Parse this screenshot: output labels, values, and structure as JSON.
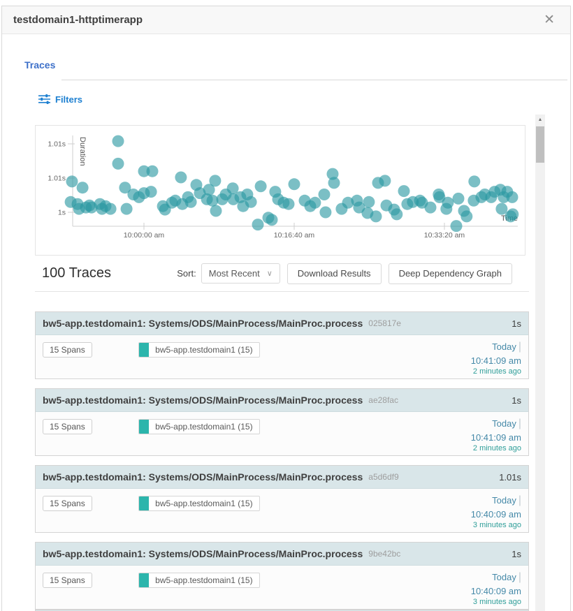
{
  "modal": {
    "title": "testdomain1-httptimerapp"
  },
  "icons": {
    "close": "✕",
    "chevron_down": "∨",
    "scroll_up": "▲",
    "filters": "sliders-horizontal-icon"
  },
  "tabs": {
    "traces_label": "Traces"
  },
  "filters": {
    "label": "Filters"
  },
  "chart_data": {
    "type": "scatter",
    "title": "",
    "xlabel": "Time",
    "ylabel": "Duration",
    "legend": "none",
    "grid": false,
    "point_color": "#2a98a2",
    "point_opacity": 0.62,
    "x_ticks": [
      {
        "t": 0,
        "label": "10:00:00 am"
      },
      {
        "t": 1000,
        "label": "10:16:40 am"
      },
      {
        "t": 2000,
        "label": "10:33:20 am"
      }
    ],
    "y_ticks": [
      {
        "d": 1.0,
        "label": "1s"
      },
      {
        "d": 1.005,
        "label": "1.01s"
      },
      {
        "d": 1.01,
        "label": "1.01s"
      }
    ],
    "x_range_s": [
      -500,
      2470
    ],
    "y_range_s": [
      0.997,
      1.012
    ],
    "point_format": "[seconds_from_10:00:00_am, duration_seconds]",
    "points": [
      [
        -488,
        1.0015
      ],
      [
        -479,
        1.0045
      ],
      [
        -442,
        1.0012
      ],
      [
        -432,
        1.0005
      ],
      [
        -409,
        1.0036
      ],
      [
        -386,
        1.0007
      ],
      [
        -363,
        1.001
      ],
      [
        -349,
        1.0007
      ],
      [
        -293,
        1.0012
      ],
      [
        -279,
        1.0005
      ],
      [
        -256,
        1.0009
      ],
      [
        -223,
        1.0005
      ],
      [
        -172,
        1.0104
      ],
      [
        -172,
        1.0071
      ],
      [
        -126,
        1.0036
      ],
      [
        -116,
        1.0005
      ],
      [
        -70,
        1.0026
      ],
      [
        -33,
        1.0022
      ],
      [
        0,
        1.006
      ],
      [
        0,
        1.0028
      ],
      [
        47,
        1.003
      ],
      [
        56,
        1.006
      ],
      [
        126,
        1.0009
      ],
      [
        140,
        1.0004
      ],
      [
        186,
        1.0014
      ],
      [
        209,
        1.0017
      ],
      [
        246,
        1.0051
      ],
      [
        256,
        1.0012
      ],
      [
        293,
        1.0022
      ],
      [
        312,
        1.0015
      ],
      [
        349,
        1.004
      ],
      [
        372,
        1.0028
      ],
      [
        419,
        1.0019
      ],
      [
        433,
        1.0033
      ],
      [
        456,
        1.0017
      ],
      [
        474,
        1.0046
      ],
      [
        479,
        1.0002
      ],
      [
        521,
        1.0019
      ],
      [
        544,
        1.0026
      ],
      [
        591,
        1.0035
      ],
      [
        595,
        1.0019
      ],
      [
        642,
        1.0022
      ],
      [
        660,
        1.0009
      ],
      [
        688,
        1.0026
      ],
      [
        712,
        1.0015
      ],
      [
        758,
        0.9982
      ],
      [
        777,
        1.0038
      ],
      [
        828,
        0.9992
      ],
      [
        851,
        0.9989
      ],
      [
        874,
        1.003
      ],
      [
        893,
        1.0019
      ],
      [
        930,
        1.0014
      ],
      [
        963,
        1.0012
      ],
      [
        1000,
        1.0041
      ],
      [
        1070,
        1.0017
      ],
      [
        1107,
        1.0009
      ],
      [
        1139,
        1.0014
      ],
      [
        1200,
        1.0026
      ],
      [
        1209,
        1.0
      ],
      [
        1256,
        1.0056
      ],
      [
        1265,
        1.0043
      ],
      [
        1316,
        1.0005
      ],
      [
        1358,
        1.0014
      ],
      [
        1418,
        1.0017
      ],
      [
        1432,
        1.0007
      ],
      [
        1488,
        0.9999
      ],
      [
        1497,
        1.0015
      ],
      [
        1544,
        0.9994
      ],
      [
        1558,
        1.0043
      ],
      [
        1604,
        1.0046
      ],
      [
        1614,
        1.001
      ],
      [
        1665,
        1.0004
      ],
      [
        1683,
        0.9997
      ],
      [
        1730,
        1.0031
      ],
      [
        1753,
        1.0012
      ],
      [
        1790,
        1.0015
      ],
      [
        1837,
        1.0017
      ],
      [
        1851,
        1.0014
      ],
      [
        1907,
        1.0007
      ],
      [
        1962,
        1.0026
      ],
      [
        1967,
        1.0022
      ],
      [
        2013,
        1.0005
      ],
      [
        2023,
        1.0014
      ],
      [
        2079,
        0.998
      ],
      [
        2093,
        1.002
      ],
      [
        2130,
        1.0002
      ],
      [
        2148,
        0.9994
      ],
      [
        2195,
        1.0017
      ],
      [
        2199,
        1.0045
      ],
      [
        2246,
        1.0022
      ],
      [
        2269,
        1.0026
      ],
      [
        2311,
        1.0022
      ],
      [
        2334,
        1.003
      ],
      [
        2372,
        1.0033
      ],
      [
        2381,
        1.0005
      ],
      [
        2395,
        1.0022
      ],
      [
        2418,
        1.003
      ],
      [
        2441,
        0.9994
      ],
      [
        2451,
        1.0022
      ],
      [
        2455,
        0.9997
      ]
    ]
  },
  "results_bar": {
    "count_label": "100 Traces",
    "sort_label": "Sort:",
    "sort_value": "Most Recent",
    "download_button": "Download Results",
    "ddg_button": "Deep Dependency Graph"
  },
  "traces": [
    {
      "title": "bw5-app.testdomain1: Systems/ODS/MainProcess/MainProc.process",
      "trace_id": "025817e",
      "duration": "1s",
      "spans": "15 Spans",
      "service_tag": "bw5-app.testdomain1 (15)",
      "date": "Today",
      "sep": "|",
      "time": "10:41:09 am",
      "relative": "2 minutes ago"
    },
    {
      "title": "bw5-app.testdomain1: Systems/ODS/MainProcess/MainProc.process",
      "trace_id": "ae28fac",
      "duration": "1s",
      "spans": "15 Spans",
      "service_tag": "bw5-app.testdomain1 (15)",
      "date": "Today",
      "sep": "|",
      "time": "10:41:09 am",
      "relative": "2 minutes ago"
    },
    {
      "title": "bw5-app.testdomain1: Systems/ODS/MainProcess/MainProc.process",
      "trace_id": "a5d6df9",
      "duration": "1.01s",
      "spans": "15 Spans",
      "service_tag": "bw5-app.testdomain1 (15)",
      "date": "Today",
      "sep": "|",
      "time": "10:40:09 am",
      "relative": "3 minutes ago"
    },
    {
      "title": "bw5-app.testdomain1: Systems/ODS/MainProcess/MainProc.process",
      "trace_id": "9be42bc",
      "duration": "1s",
      "spans": "15 Spans",
      "service_tag": "bw5-app.testdomain1 (15)",
      "date": "Today",
      "sep": "|",
      "time": "10:40:09 am",
      "relative": "3 minutes ago"
    }
  ],
  "colors": {
    "tab_blue": "#3d70c9",
    "filters_blue": "#1e80d1",
    "scatter_teal": "#2a98a2",
    "card_header_bg": "#d9e6e9",
    "service_swatch_teal": "#2cb5ac",
    "datetime_blue": "#4589a8",
    "relative_teal": "#2f9e99"
  }
}
